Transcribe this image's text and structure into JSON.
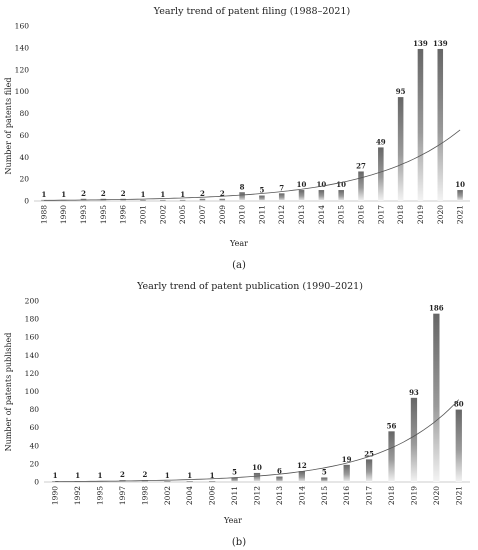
{
  "chart_data": [
    {
      "type": "bar",
      "title": "Yearly trend of patent filing (1988–2021)",
      "xlabel": "Year",
      "ylabel": "Number of patents filed",
      "caption": "(a)",
      "ylim": [
        0,
        160
      ],
      "yticks": [
        0,
        20,
        40,
        60,
        80,
        100,
        120,
        140,
        160
      ],
      "grid": false,
      "trendline": "exponential",
      "categories": [
        "1988",
        "1990",
        "1993",
        "1995",
        "1996",
        "2001",
        "2002",
        "2005",
        "2007",
        "2009",
        "2010",
        "2011",
        "2012",
        "2013",
        "2014",
        "2015",
        "2016",
        "2017",
        "2018",
        "2019",
        "2020",
        "2021"
      ],
      "values": [
        1,
        1,
        2,
        2,
        2,
        1,
        1,
        1,
        2,
        2,
        8,
        5,
        7,
        10,
        10,
        10,
        27,
        49,
        95,
        139,
        139,
        10
      ],
      "bar_color": "#6e6e6e"
    },
    {
      "type": "bar",
      "title": "Yearly trend of patent publication (1990–2021)",
      "xlabel": "Year",
      "ylabel": "Number of patents published",
      "caption": "(b)",
      "ylim": [
        0,
        200
      ],
      "yticks": [
        0,
        20,
        40,
        60,
        80,
        100,
        120,
        140,
        160,
        180,
        200
      ],
      "grid": false,
      "trendline": "exponential",
      "categories": [
        "1990",
        "1992",
        "1995",
        "1997",
        "1998",
        "2002",
        "2004",
        "2006",
        "2011",
        "2012",
        "2013",
        "2014",
        "2015",
        "2016",
        "2017",
        "2018",
        "2019",
        "2020",
        "2021"
      ],
      "values": [
        1,
        1,
        1,
        2,
        2,
        1,
        1,
        1,
        5,
        10,
        6,
        12,
        5,
        19,
        25,
        56,
        93,
        186,
        80
      ],
      "bar_color": "#6e6e6e"
    }
  ]
}
